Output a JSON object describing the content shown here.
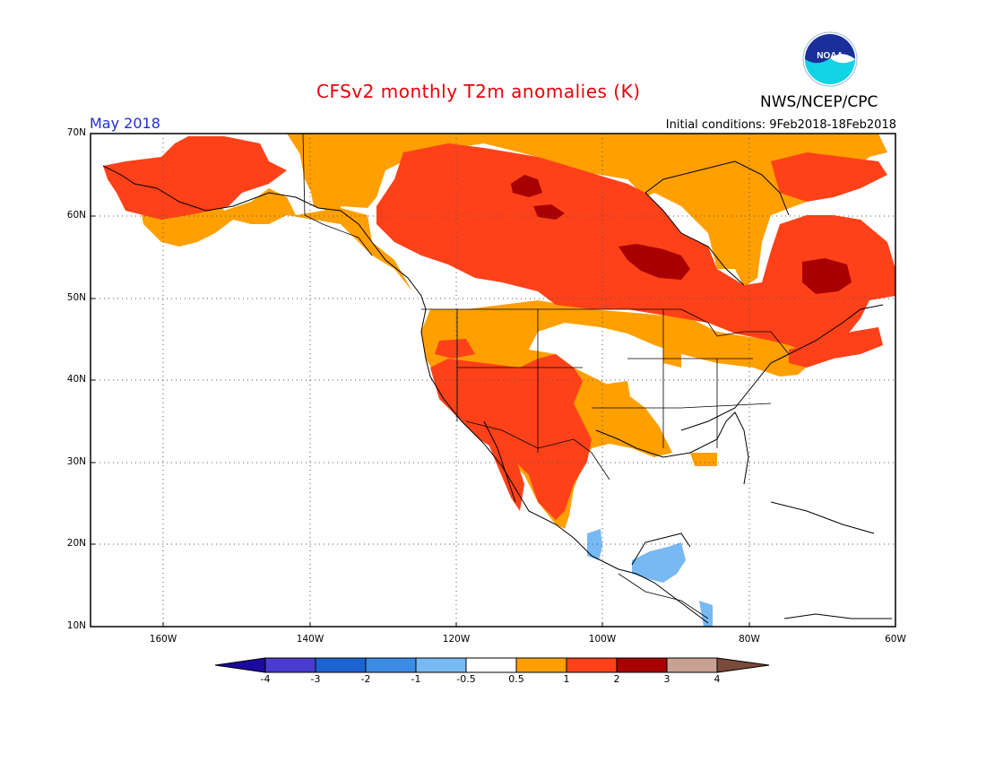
{
  "header": {
    "title": "CFSv2 monthly T2m anomalies (K)",
    "agency": "NWS/NCEP/CPC",
    "month": "May 2018",
    "initial_conditions": "Initial conditions: 9Feb2018-18Feb2018",
    "logo_text": "NOAA"
  },
  "map": {
    "region": "North America",
    "projection": "lat-lon",
    "lon_range": [
      -170,
      -60
    ],
    "lat_range": [
      10,
      70
    ],
    "lat_labels": [
      "70N",
      "60N",
      "50N",
      "40N",
      "30N",
      "20N",
      "10N"
    ],
    "lon_labels": [
      "160W",
      "140W",
      "120W",
      "100W",
      "80W",
      "60W"
    ],
    "gridlines": "dotted"
  },
  "colorbar": {
    "ticks": [
      "-4",
      "-3",
      "-2",
      "-1",
      "-0.5",
      "0.5",
      "1",
      "2",
      "3",
      "4"
    ],
    "colors": [
      "#1a0aa0",
      "#4a3ccf",
      "#1b64d0",
      "#3c8ce6",
      "#78b9f3",
      "#ffffff",
      "#ff9f00",
      "#ff4119",
      "#a80000",
      "#c9a191",
      "#7a4a3a"
    ]
  },
  "anomaly_levels": {
    "warm_0_5_1": "#ff9f00",
    "warm_1_2": "#ff4119",
    "warm_2_3": "#a80000",
    "cool_1_0_5": "#78b9f3"
  }
}
